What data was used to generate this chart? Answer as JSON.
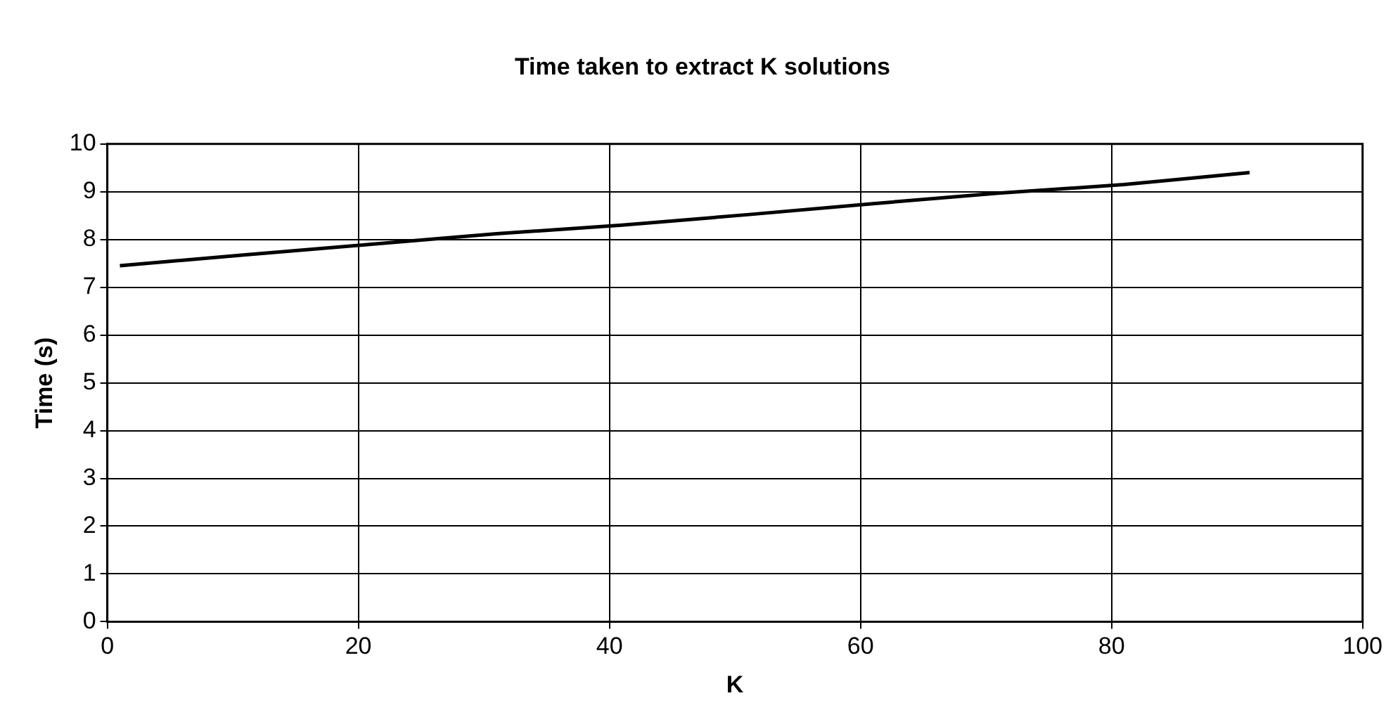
{
  "chart_data": {
    "type": "line",
    "title": "Time taken to extract K solutions",
    "xlabel": "K",
    "ylabel": "Time (s)",
    "x": [
      1,
      11,
      21,
      31,
      41,
      51,
      61,
      71,
      81,
      91
    ],
    "series": [
      {
        "color": "#000000",
        "values": [
          7.45,
          7.68,
          7.9,
          8.12,
          8.3,
          8.52,
          8.75,
          8.97,
          9.15,
          9.4
        ]
      }
    ],
    "xlim": [
      0,
      100
    ],
    "xticks": [
      0,
      20,
      40,
      60,
      80,
      100
    ],
    "ylim": [
      0,
      10
    ],
    "yticks": [
      0,
      1,
      2,
      3,
      4,
      5,
      6,
      7,
      8,
      9,
      10
    ],
    "grid": true,
    "legend": false,
    "marker": "none",
    "line_style": "solid"
  }
}
